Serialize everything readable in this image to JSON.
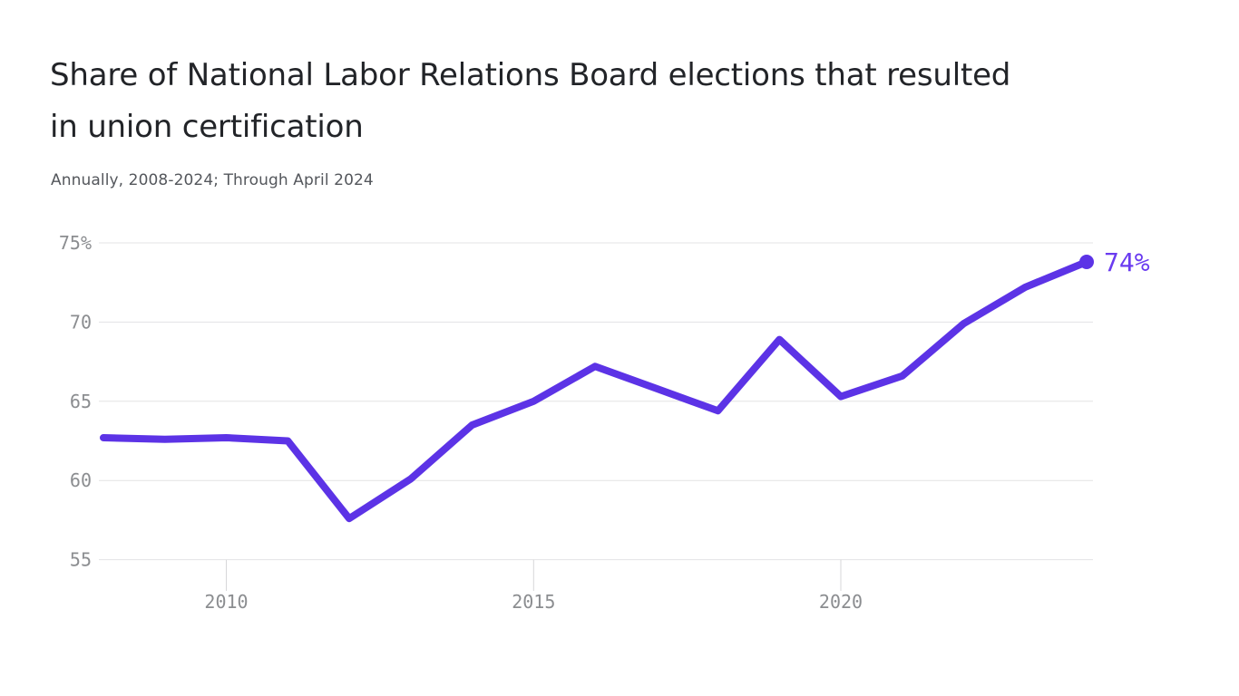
{
  "header": {
    "title_line1": "Share of National Labor Relations Board elections that resulted",
    "title_line2": "in union certification",
    "subtitle": "Annually, 2008-2024; Through April 2024"
  },
  "chart_data": {
    "type": "line",
    "title": "Share of National Labor Relations Board elections that resulted in union certification",
    "subtitle": "Annually, 2008-2024; Through April 2024",
    "unit": "%",
    "x": [
      2008,
      2009,
      2010,
      2011,
      2012,
      2013,
      2014,
      2015,
      2016,
      2017,
      2018,
      2019,
      2020,
      2021,
      2022,
      2023,
      2024
    ],
    "values": [
      62.7,
      62.6,
      62.7,
      62.5,
      57.6,
      60.1,
      63.5,
      65.0,
      67.2,
      65.8,
      64.4,
      68.9,
      65.3,
      66.6,
      69.9,
      72.2,
      73.8
    ],
    "xlim": [
      2008,
      2024
    ],
    "ylim": [
      55,
      75
    ],
    "grid": "horizontal",
    "legend": "none",
    "y_ticks": [
      {
        "value": 75,
        "label": "75%"
      },
      {
        "value": 70,
        "label": "70"
      },
      {
        "value": 65,
        "label": "65"
      },
      {
        "value": 60,
        "label": "60"
      },
      {
        "value": 55,
        "label": "55"
      }
    ],
    "x_ticks": [
      {
        "value": 2010,
        "label": "2010"
      },
      {
        "value": 2015,
        "label": "2015"
      },
      {
        "value": 2020,
        "label": "2020"
      }
    ],
    "end_label": "74%",
    "colors": {
      "line": "#5c33e6",
      "end_dot": "#5c33e6",
      "end_label": "#6a3bf0",
      "grid": "#e3e3e4",
      "tick": "#d7d7d9",
      "tick_text": "#8b8d90",
      "title_text": "#222428",
      "subtitle_text": "#54575c",
      "background": "#ffffff"
    }
  }
}
